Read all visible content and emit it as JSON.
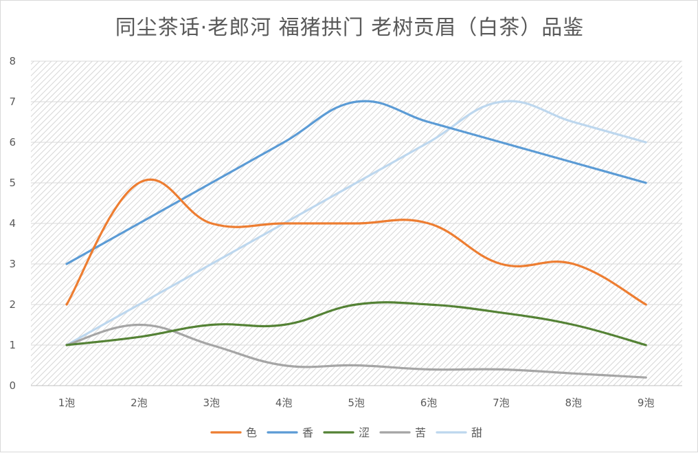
{
  "chart_data": {
    "type": "line",
    "title": "同尘茶话·老郎河 福猪拱门 老树贡眉（白茶）品鉴",
    "xlabel": "",
    "ylabel": "",
    "categories": [
      "1泡",
      "2泡",
      "3泡",
      "4泡",
      "5泡",
      "6泡",
      "7泡",
      "8泡",
      "9泡"
    ],
    "ylim": [
      0,
      8
    ],
    "yticks": [
      "0",
      "1",
      "2",
      "3",
      "4",
      "5",
      "6",
      "7",
      "8"
    ],
    "grid": true,
    "smooth": true,
    "legend_position": "bottom",
    "series": [
      {
        "name": "色",
        "color": "#ED7D31",
        "values": [
          2,
          5,
          4,
          4,
          4,
          4,
          3,
          3,
          2
        ]
      },
      {
        "name": "香",
        "color": "#5B9BD5",
        "values": [
          3,
          4,
          5,
          6,
          7,
          6.5,
          6,
          5.5,
          5
        ]
      },
      {
        "name": "涩",
        "color": "#548235",
        "values": [
          1,
          1.2,
          1.5,
          1.5,
          2,
          2,
          1.8,
          1.5,
          1
        ]
      },
      {
        "name": "苦",
        "color": "#A5A5A5",
        "values": [
          1,
          1.5,
          1,
          0.5,
          0.5,
          0.4,
          0.4,
          0.3,
          0.2
        ]
      },
      {
        "name": "甜",
        "color": "#BDD7EE",
        "values": [
          1,
          2,
          3,
          4,
          5,
          6,
          7,
          6.5,
          6
        ]
      }
    ]
  }
}
